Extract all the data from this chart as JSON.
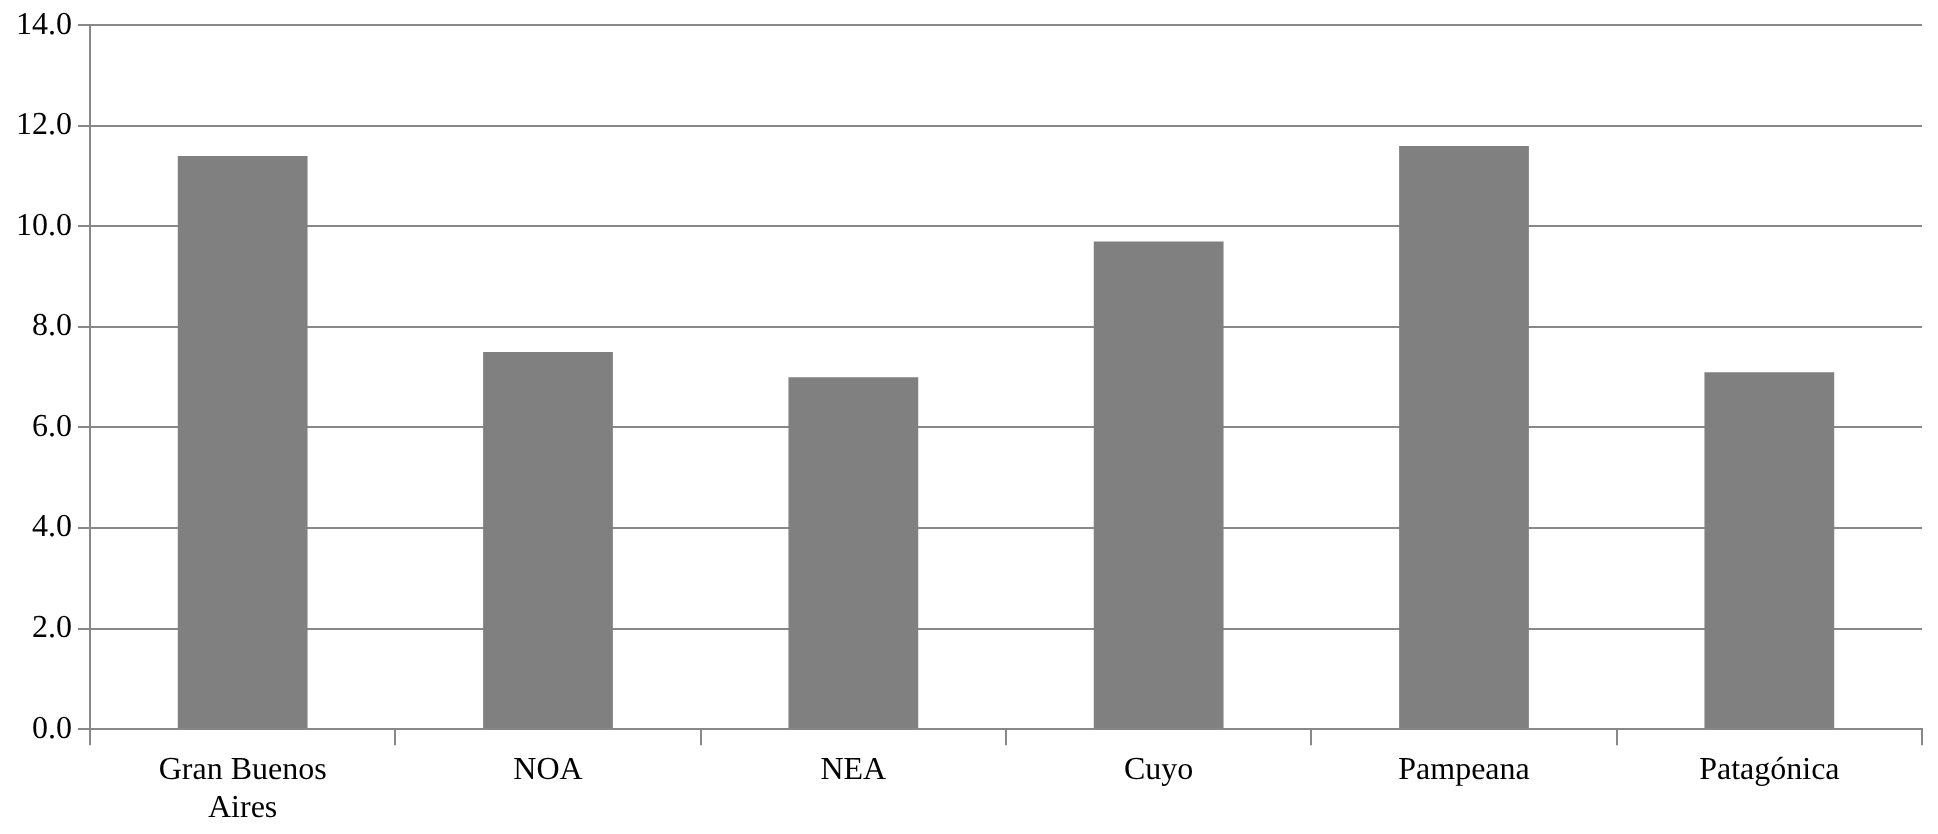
{
  "chart_data": {
    "type": "bar",
    "categories": [
      "Gran Buenos Aires",
      "NOA",
      "NEA",
      "Cuyo",
      "Pampeana",
      "Patagónica"
    ],
    "values": [
      11.4,
      7.5,
      7.0,
      9.7,
      11.6,
      7.1
    ],
    "color": "#808080",
    "ylim": [
      0,
      14
    ],
    "yticks": [
      {
        "value": 0,
        "label": "0.0"
      },
      {
        "value": 2,
        "label": "2.0"
      },
      {
        "value": 4,
        "label": "4.0"
      },
      {
        "value": 6,
        "label": "6.0"
      },
      {
        "value": 8,
        "label": "8.0"
      },
      {
        "value": 10,
        "label": "10.0"
      },
      {
        "value": 12,
        "label": "12.0"
      },
      {
        "value": 14,
        "label": "14.0"
      }
    ],
    "grid": "y",
    "legend": false
  }
}
